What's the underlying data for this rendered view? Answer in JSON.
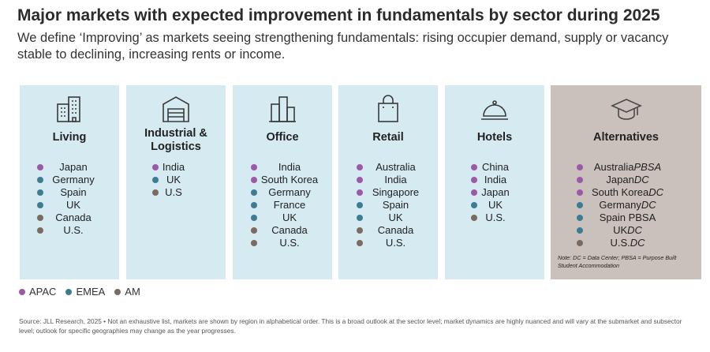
{
  "header": {
    "title": "Major markets with expected improvement in fundamentals by sector during 2025",
    "subtitle": "We define ‘Improving’ as markets seeing strengthening fundamentals: rising occupier demand, supply or vacancy stable to declining, increasing rents or income."
  },
  "region_colors": {
    "APAC": "#9b59a6",
    "EMEA": "#3d7c91",
    "AM": "#7b6a60"
  },
  "sectors": [
    {
      "title": "Living",
      "icon": "building-icon",
      "markets": [
        {
          "name": "Japan",
          "region": "APAC"
        },
        {
          "name": "Germany",
          "region": "EMEA"
        },
        {
          "name": "Spain",
          "region": "EMEA"
        },
        {
          "name": "UK",
          "region": "EMEA"
        },
        {
          "name": "Canada",
          "region": "AM"
        },
        {
          "name": "U.S.",
          "region": "AM"
        }
      ]
    },
    {
      "title": "Industrial & Logistics",
      "icon": "warehouse-icon",
      "markets": [
        {
          "name": "India",
          "region": "APAC"
        },
        {
          "name": "UK",
          "region": "EMEA"
        },
        {
          "name": "U.S",
          "region": "AM"
        }
      ]
    },
    {
      "title": "Office",
      "icon": "office-towers-icon",
      "markets": [
        {
          "name": "India",
          "region": "APAC"
        },
        {
          "name": "South Korea",
          "region": "APAC"
        },
        {
          "name": "Germany",
          "region": "EMEA"
        },
        {
          "name": "France",
          "region": "EMEA"
        },
        {
          "name": "UK",
          "region": "EMEA"
        },
        {
          "name": "Canada",
          "region": "AM"
        },
        {
          "name": "U.S.",
          "region": "AM"
        }
      ]
    },
    {
      "title": "Retail",
      "icon": "shopping-bag-icon",
      "markets": [
        {
          "name": "Australia",
          "region": "APAC"
        },
        {
          "name": "India",
          "region": "APAC"
        },
        {
          "name": "Singapore",
          "region": "APAC"
        },
        {
          "name": "Spain",
          "region": "EMEA"
        },
        {
          "name": "UK",
          "region": "EMEA"
        },
        {
          "name": "Canada",
          "region": "AM"
        },
        {
          "name": "U.S.",
          "region": "AM"
        }
      ]
    },
    {
      "title": "Hotels",
      "icon": "cloche-icon",
      "markets": [
        {
          "name": "China",
          "region": "APAC"
        },
        {
          "name": "India",
          "region": "APAC"
        },
        {
          "name": "Japan",
          "region": "APAC"
        },
        {
          "name": "UK",
          "region": "EMEA"
        },
        {
          "name": "U.S.",
          "region": "AM"
        }
      ]
    },
    {
      "title": "Alternatives",
      "icon": "graduation-cap-icon",
      "markets": [
        {
          "name": "Australia",
          "tag": "PBSA",
          "region": "APAC"
        },
        {
          "name": "Japan",
          "tag": "DC",
          "region": "APAC"
        },
        {
          "name": "South Korea",
          "tag": "DC",
          "region": "APAC"
        },
        {
          "name": "Germany",
          "tag": "DC",
          "region": "EMEA"
        },
        {
          "name": "Spain PBSA",
          "region": "EMEA"
        },
        {
          "name": "UK",
          "tag": "DC",
          "region": "EMEA"
        },
        {
          "name": "U.S.",
          "tag": "DC",
          "region": "AM"
        }
      ],
      "note": "Note: DC = Data Center; PBSA = Purpose Built Student Accommodation"
    }
  ],
  "legend": [
    {
      "label": "APAC",
      "region": "APAC"
    },
    {
      "label": "EMEA",
      "region": "EMEA"
    },
    {
      "label": "AM",
      "region": "AM"
    }
  ],
  "source": "Source: JLL Research, 2025 • Not an exhaustive list, markets are shown by region in alphabetical order. This is a broad outlook at the sector level; market dynamics are highly nuanced and will vary at the submarket and subsector level; outlook for specific geographies may change as the year progresses."
}
